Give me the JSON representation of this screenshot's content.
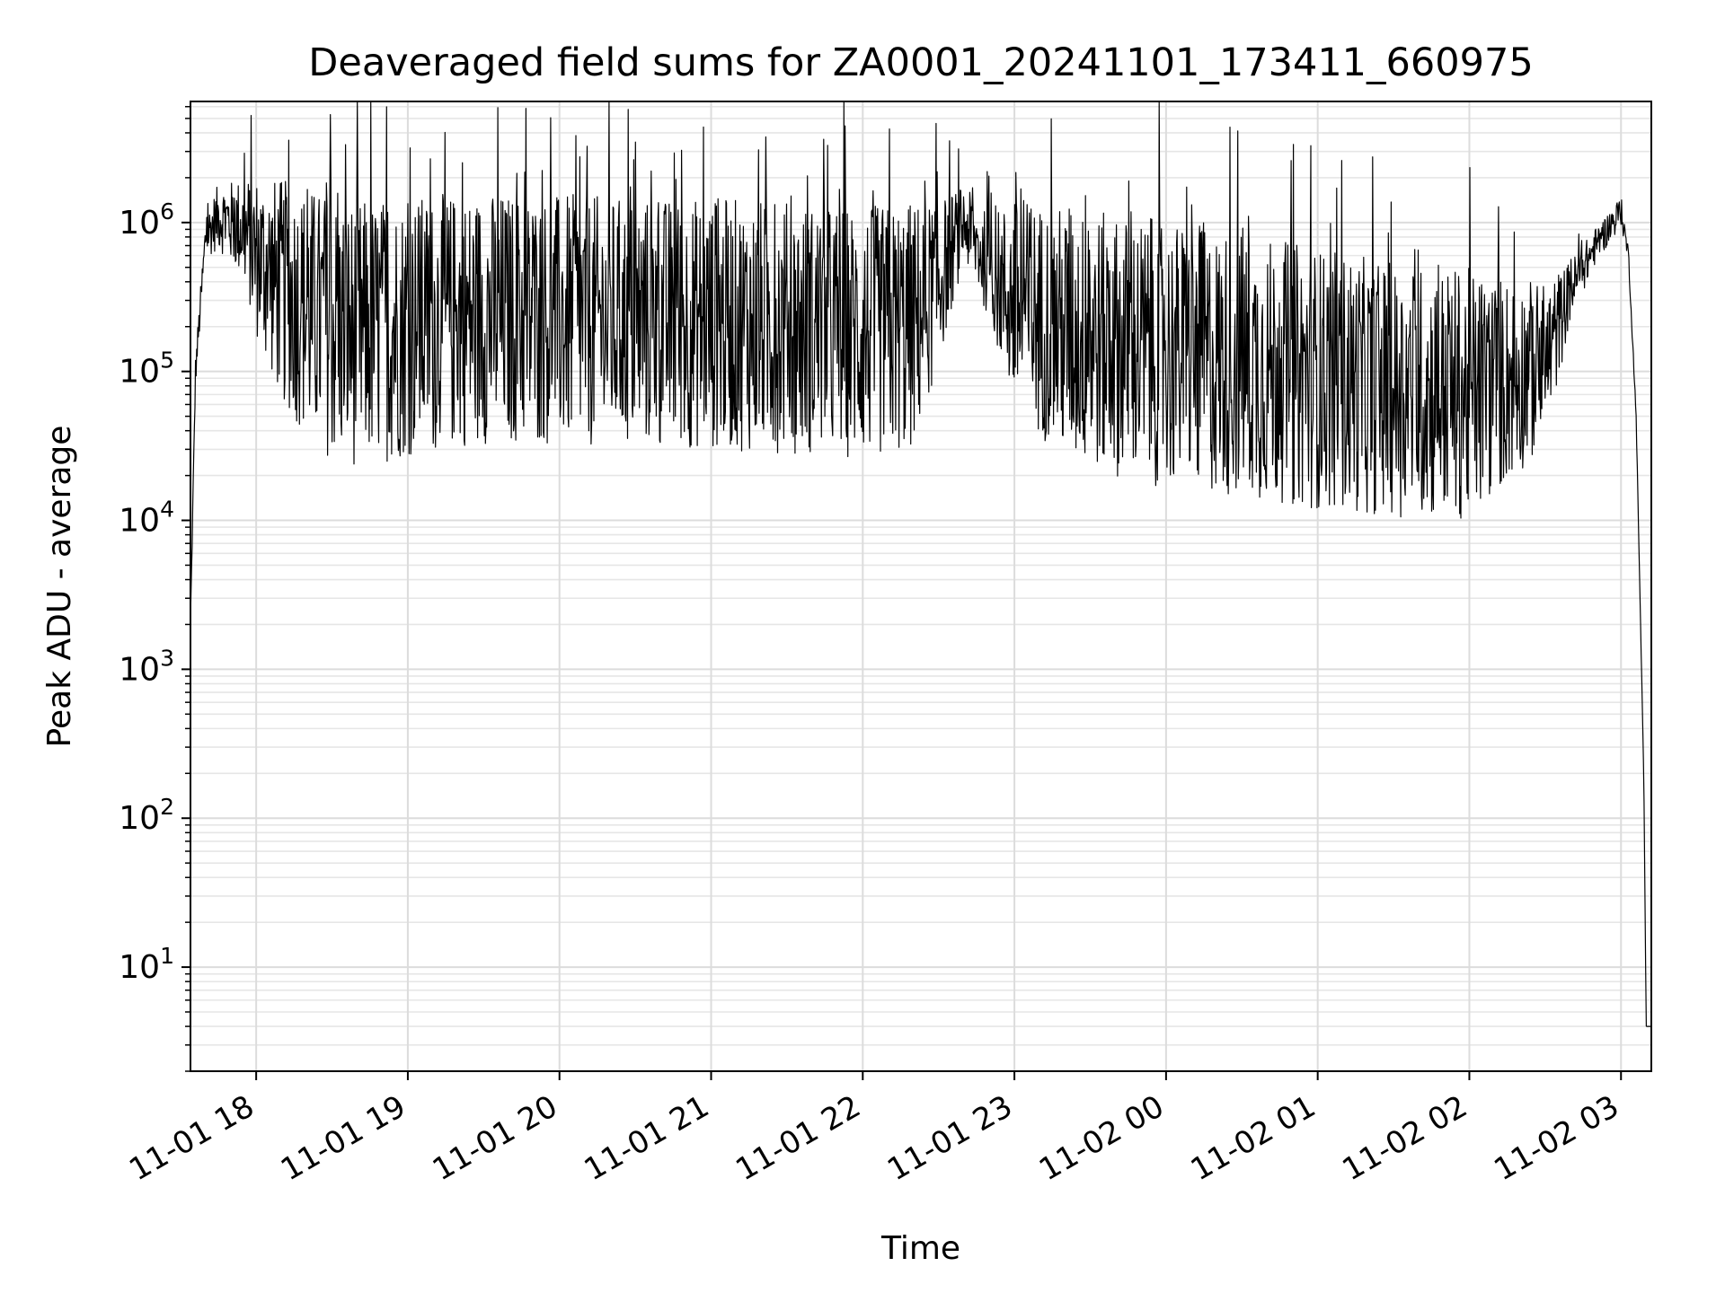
{
  "chart_data": {
    "type": "line",
    "title": "Deaveraged field sums for ZA0001_20241101_173411_660975",
    "xlabel": "Time",
    "ylabel": "Peak ADU - average",
    "x_axis": {
      "type": "datetime",
      "range": [
        "2024-11-01 17:34",
        "2024-11-02 03:12"
      ],
      "tick_values": [
        "2024-11-01 18:00",
        "2024-11-01 19:00",
        "2024-11-01 20:00",
        "2024-11-01 21:00",
        "2024-11-01 22:00",
        "2024-11-01 23:00",
        "2024-11-02 00:00",
        "2024-11-02 01:00",
        "2024-11-02 02:00",
        "2024-11-02 03:00"
      ],
      "tick_labels": [
        "11-01 18",
        "11-01 19",
        "11-01 20",
        "11-01 21",
        "11-01 22",
        "11-01 23",
        "11-02 00",
        "11-02 01",
        "11-02 02",
        "11-02 03"
      ],
      "tick_rotation_deg": 30
    },
    "y_axis": {
      "scale": "log",
      "range": [
        2,
        6500000
      ],
      "tick_values": [
        10,
        100,
        1000,
        10000,
        100000,
        1000000
      ],
      "tick_labels": [
        {
          "base": "10",
          "exp": "1"
        },
        {
          "base": "10",
          "exp": "2"
        },
        {
          "base": "10",
          "exp": "3"
        },
        {
          "base": "10",
          "exp": "4"
        },
        {
          "base": "10",
          "exp": "5"
        },
        {
          "base": "10",
          "exp": "6"
        }
      ]
    },
    "grid": true,
    "series": [
      {
        "color": "#000000",
        "x": [
          "2024-11-01 17:34",
          "2024-11-01 17:36",
          "2024-11-01 17:40",
          "2024-11-01 17:45",
          "2024-11-01 17:50",
          "2024-11-01 17:55",
          "2024-11-01 18:00",
          "2024-11-01 18:10",
          "2024-11-01 18:20",
          "2024-11-01 18:30",
          "2024-11-01 18:40",
          "2024-11-01 19:00",
          "2024-11-01 19:30",
          "2024-11-01 20:00",
          "2024-11-01 20:30",
          "2024-11-01 21:00",
          "2024-11-01 21:30",
          "2024-11-01 22:00",
          "2024-11-01 22:20",
          "2024-11-01 22:30",
          "2024-11-01 22:40",
          "2024-11-01 22:50",
          "2024-11-01 23:00",
          "2024-11-01 23:20",
          "2024-11-01 23:40",
          "2024-11-02 00:00",
          "2024-11-02 00:30",
          "2024-11-02 01:00",
          "2024-11-02 01:30",
          "2024-11-02 02:00",
          "2024-11-02 02:30",
          "2024-11-02 02:40",
          "2024-11-02 02:50",
          "2024-11-02 03:00",
          "2024-11-02 03:03",
          "2024-11-02 03:06",
          "2024-11-02 03:09",
          "2024-11-02 03:10",
          "2024-11-02 03:12"
        ],
        "y": [
          2000,
          100000,
          800000,
          1100000,
          1000000,
          900000,
          600000,
          350000,
          250000,
          200000,
          180000,
          200000,
          230000,
          220000,
          210000,
          210000,
          200000,
          180000,
          200000,
          400000,
          1000000,
          500000,
          280000,
          180000,
          150000,
          130000,
          110000,
          90000,
          75000,
          70000,
          110000,
          350000,
          700000,
          1200000,
          600000,
          50000,
          200,
          4,
          4
        ],
        "spread": [
          0.05,
          0.1,
          0.15,
          0.22,
          0.28,
          0.35,
          0.55,
          0.75,
          0.85,
          0.9,
          0.9,
          0.88,
          0.85,
          0.85,
          0.85,
          0.85,
          0.85,
          0.85,
          0.85,
          0.55,
          0.25,
          0.35,
          0.72,
          0.85,
          0.88,
          0.9,
          0.9,
          0.88,
          0.85,
          0.85,
          0.55,
          0.2,
          0.12,
          0.1,
          0.05,
          0.02,
          0,
          0,
          0
        ]
      }
    ]
  }
}
